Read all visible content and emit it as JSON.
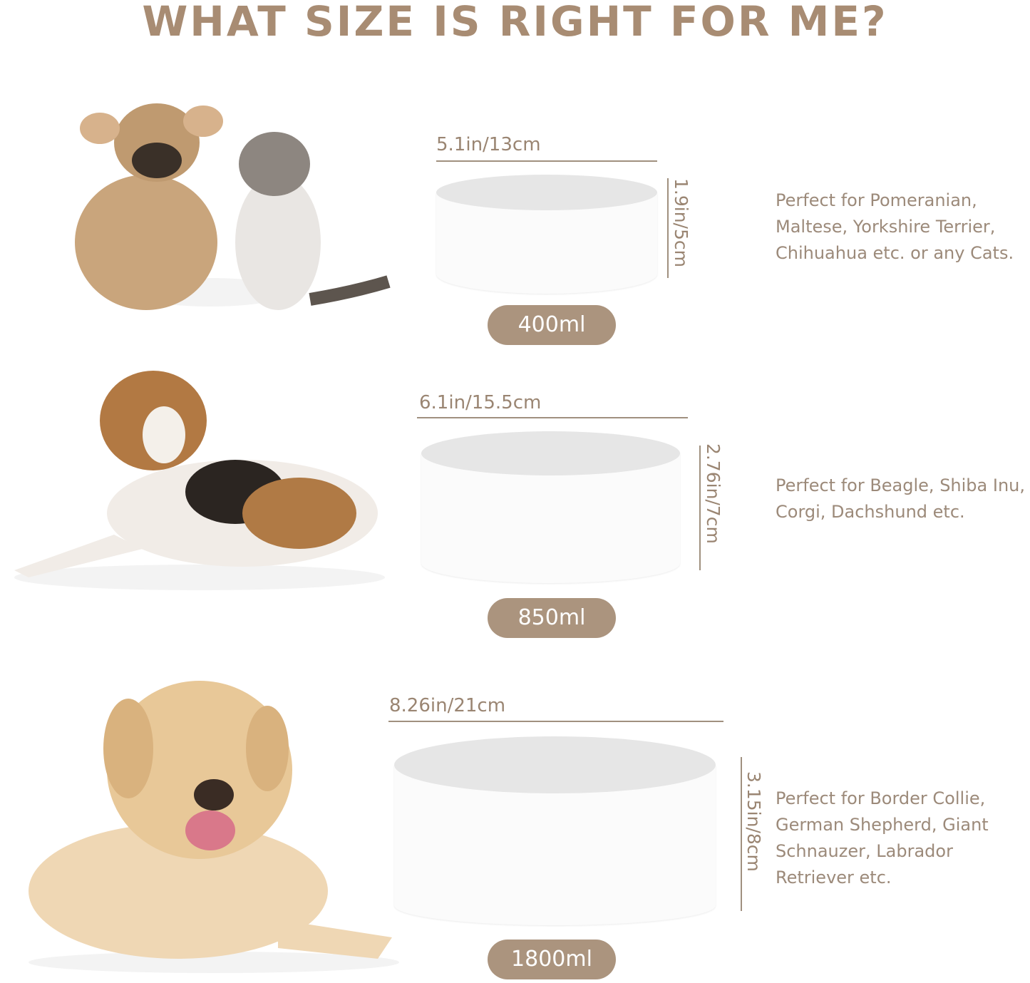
{
  "title": "WHAT SIZE IS RIGHT FOR ME?",
  "colors": {
    "title": "#a88c73",
    "pill": "#ab947e",
    "text": "#9c8a7a",
    "line": "#a0907f"
  },
  "sizes": [
    {
      "width_label": "5.1in/13cm",
      "height_label": "1.9in/5cm",
      "capacity": "400ml",
      "description": "Perfect for Pomeranian, Maltese, Yorkshire Terrier, Chihuahua etc. or any Cats.",
      "image": "french-bulldog-and-kitten"
    },
    {
      "width_label": "6.1in/15.5cm",
      "height_label": "2.76in/7cm",
      "capacity": "850ml",
      "description": "Perfect for Beagle, Shiba Inu, Corgi, Dachshund etc.",
      "image": "beagle"
    },
    {
      "width_label": "8.26in/21cm",
      "height_label": "3.15in/8cm",
      "capacity": "1800ml",
      "description": "Perfect for Border Collie, German Shepherd, Giant Schnauzer, Labrador Retriever etc.",
      "image": "labrador"
    }
  ]
}
